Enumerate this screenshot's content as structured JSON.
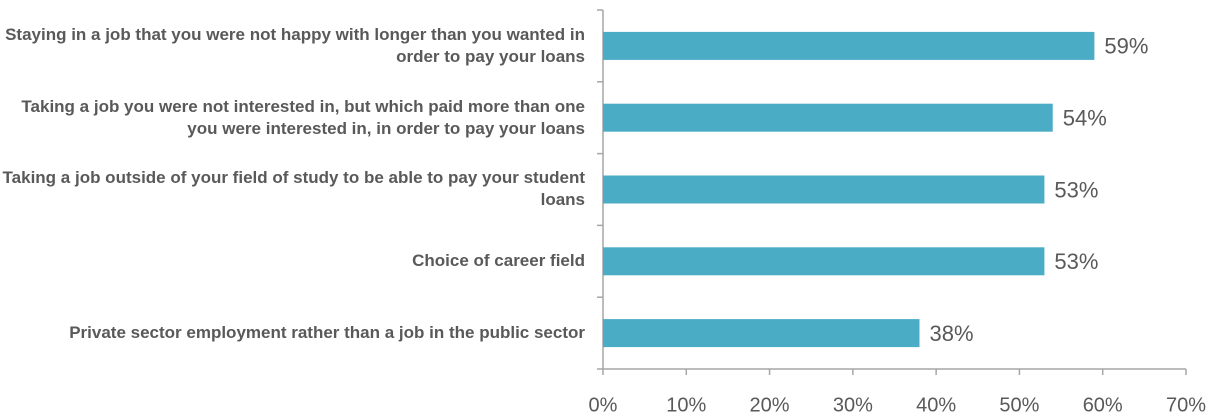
{
  "chart_data": {
    "type": "bar",
    "orientation": "horizontal",
    "categories": [
      "Staying in a job that you were not happy with longer than you wanted in order to pay your loans",
      "Taking a job you were not interested in, but which paid more than one you were interested in, in order to pay your loans",
      "Taking a job outside of your field of study to be able to pay your student loans",
      "Choice of career field",
      "Private sector employment rather than a job in the public sector"
    ],
    "values": [
      59,
      54,
      53,
      53,
      38
    ],
    "value_labels": [
      "59%",
      "54%",
      "53%",
      "53%",
      "38%"
    ],
    "color": "#4bacc6",
    "xlim": [
      0,
      70
    ],
    "xticks": [
      {
        "value": 0,
        "label": "0%"
      },
      {
        "value": 10,
        "label": "10%"
      },
      {
        "value": 20,
        "label": "20%"
      },
      {
        "value": 30,
        "label": "30%"
      },
      {
        "value": 40,
        "label": "40%"
      },
      {
        "value": 50,
        "label": "50%"
      },
      {
        "value": 60,
        "label": "60%"
      },
      {
        "value": 70,
        "label": "70%"
      }
    ],
    "grid": false
  }
}
